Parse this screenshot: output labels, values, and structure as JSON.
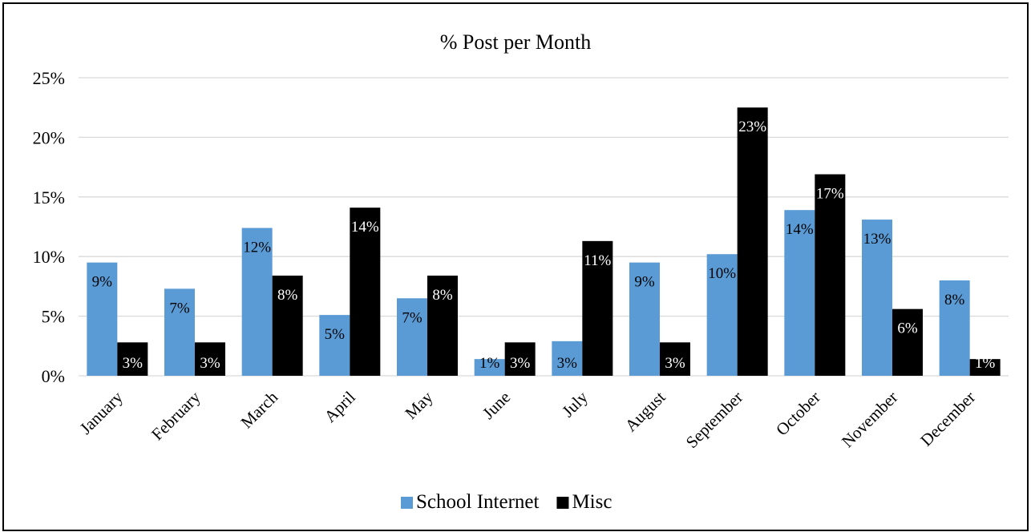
{
  "chart_data": {
    "type": "bar",
    "title": "% Post per Month",
    "xlabel": "",
    "ylabel": "",
    "ylim": [
      0,
      25
    ],
    "yticks": [
      0,
      5,
      10,
      15,
      20,
      25
    ],
    "ytick_labels": [
      "0%",
      "5%",
      "10%",
      "15%",
      "20%",
      "25%"
    ],
    "grid": true,
    "legend_position": "bottom",
    "categories": [
      "January",
      "February",
      "March",
      "April",
      "May",
      "June",
      "July",
      "August",
      "September",
      "October",
      "November",
      "December"
    ],
    "series": [
      {
        "name": "School Internet",
        "color": "#5b9bd5",
        "label_color": "#000000",
        "values": [
          9.5,
          7.3,
          12.4,
          5.1,
          6.5,
          1.4,
          2.9,
          9.5,
          10.2,
          13.9,
          13.1,
          8.0
        ],
        "labels": [
          "9%",
          "7%",
          "12%",
          "5%",
          "7%",
          "1%",
          "3%",
          "9%",
          "10%",
          "14%",
          "13%",
          "8%"
        ]
      },
      {
        "name": "Misc",
        "color": "#000000",
        "label_color": "#ffffff",
        "values": [
          2.8,
          2.8,
          8.4,
          14.1,
          8.4,
          2.8,
          11.3,
          2.8,
          22.5,
          16.9,
          5.6,
          1.4
        ],
        "labels": [
          "3%",
          "3%",
          "8%",
          "14%",
          "8%",
          "3%",
          "11%",
          "3%",
          "23%",
          "17%",
          "6%",
          "1%"
        ]
      }
    ]
  }
}
